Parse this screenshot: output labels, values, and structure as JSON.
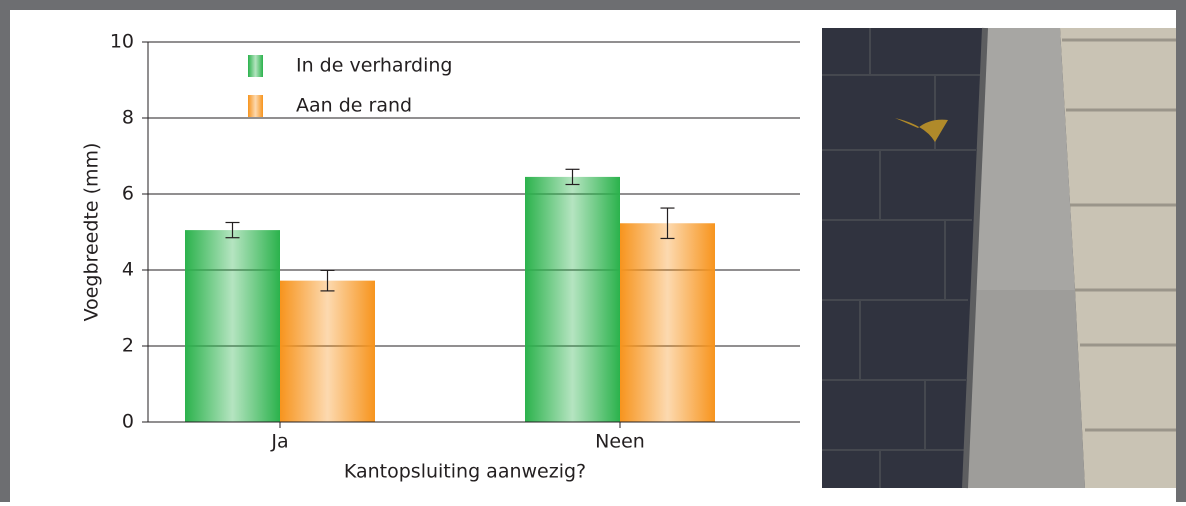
{
  "chart_data": {
    "type": "bar",
    "x_label": "Kantopsluiting aanwezig?",
    "y_label": "Voegbreedte (mm)",
    "categories": [
      "Ja",
      "Neen"
    ],
    "series": [
      {
        "name": "In de verharding",
        "color": "#2bb24c",
        "values": [
          5.05,
          6.45
        ],
        "errors": [
          0.2,
          0.2
        ]
      },
      {
        "name": "Aan de rand",
        "color": "#f7941d",
        "values": [
          3.72,
          5.23
        ],
        "errors": [
          0.27,
          0.4
        ]
      }
    ],
    "ylim": [
      0,
      10
    ],
    "yticks": [
      0,
      2,
      4,
      6,
      8,
      10
    ],
    "grid": true,
    "legend": "upper left"
  }
}
